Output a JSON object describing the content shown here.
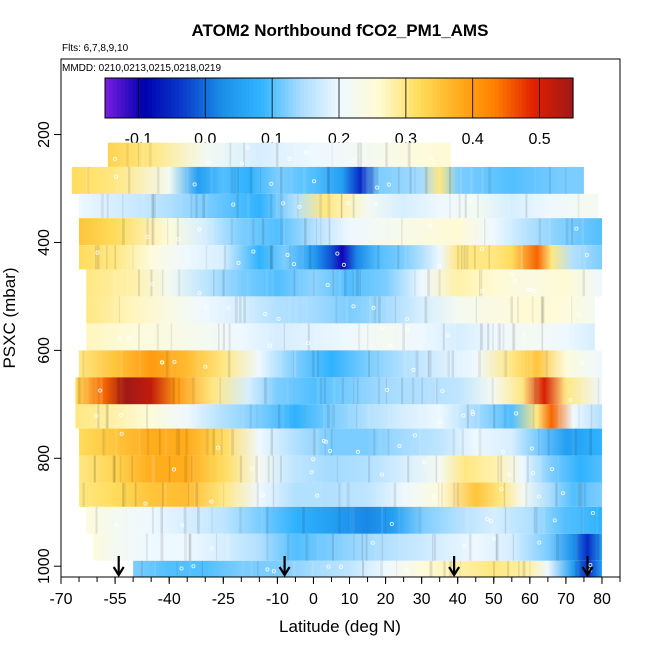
{
  "chart_data": {
    "type": "heatmap",
    "title": "ATOM2 Northbound fCO2_PM1_AMS",
    "flights_note": "Flts: 6,7,8,9,10",
    "dates_note": "MMDD: 0210,0213,0215,0218,0219",
    "xlabel": "Latitude (deg N)",
    "ylabel": "PSXC (mbar)",
    "xlim": [
      -70,
      85
    ],
    "ylim": [
      1020,
      60
    ],
    "x_ticks": [
      -70,
      -55,
      -40,
      -25,
      -10,
      0,
      10,
      20,
      30,
      40,
      50,
      60,
      70,
      80
    ],
    "x_tick_labels": [
      "-70",
      "-55",
      "-40",
      "-25",
      "-10",
      "0",
      "10",
      "20",
      "30",
      "40",
      "50",
      "60",
      "70",
      "80"
    ],
    "y_ticks": [
      200,
      400,
      600,
      800,
      1000
    ],
    "y_tick_labels": [
      "200",
      "400",
      "600",
      "800",
      "1000"
    ],
    "colorbar": {
      "min": -0.15,
      "max": 0.55,
      "ticks": [
        -0.1,
        0.0,
        0.1,
        0.2,
        0.3,
        0.4,
        0.5
      ],
      "tick_labels": [
        "-0.1",
        "0.0",
        "0.1",
        "0.2",
        "0.3",
        "0.4",
        "0.5"
      ],
      "colors": [
        "#7a1fe0",
        "#0000b0",
        "#0a3ccc",
        "#1a8fe8",
        "#31b4ff",
        "#a8dcff",
        "#eef8ff",
        "#fffbd6",
        "#ffdf60",
        "#ffb020",
        "#ff8000",
        "#e02000",
        "#a01818"
      ]
    },
    "profile_arrows_latitude": [
      -54,
      -8,
      39,
      76
    ],
    "value_units": "fraction",
    "bands": [
      {
        "p_top": 215,
        "p_bot": 260,
        "x_start": -57,
        "x_end": 38,
        "nodes": [
          [
            -57,
            0.33
          ],
          [
            -45,
            0.3
          ],
          [
            -30,
            0.22
          ],
          [
            -15,
            0.18
          ],
          [
            0,
            0.2
          ],
          [
            15,
            0.22
          ],
          [
            30,
            0.25
          ],
          [
            38,
            0.26
          ]
        ]
      },
      {
        "p_top": 260,
        "p_bot": 310,
        "x_start": -67,
        "x_end": 75,
        "nodes": [
          [
            -67,
            0.32
          ],
          [
            -55,
            0.3
          ],
          [
            -40,
            0.22
          ],
          [
            -32,
            0.05
          ],
          [
            -25,
            0.1
          ],
          [
            -18,
            0.08
          ],
          [
            -10,
            0.12
          ],
          [
            0,
            0.1
          ],
          [
            8,
            0.05
          ],
          [
            13,
            -0.05
          ],
          [
            18,
            0.12
          ],
          [
            30,
            0.14
          ],
          [
            35,
            0.3
          ],
          [
            40,
            0.12
          ],
          [
            55,
            0.1
          ],
          [
            70,
            0.12
          ],
          [
            75,
            0.12
          ]
        ]
      },
      {
        "p_top": 310,
        "p_bot": 355,
        "x_start": -65,
        "x_end": 79,
        "nodes": [
          [
            -65,
            0.2
          ],
          [
            -55,
            0.18
          ],
          [
            -40,
            0.15
          ],
          [
            -30,
            0.12
          ],
          [
            -15,
            0.08
          ],
          [
            -5,
            0.15
          ],
          [
            3,
            0.3
          ],
          [
            8,
            0.28
          ],
          [
            15,
            0.22
          ],
          [
            25,
            0.18
          ],
          [
            35,
            0.2
          ],
          [
            45,
            0.22
          ],
          [
            55,
            0.18
          ],
          [
            65,
            0.2
          ],
          [
            75,
            0.22
          ],
          [
            79,
            0.22
          ]
        ]
      },
      {
        "p_top": 355,
        "p_bot": 405,
        "x_start": -65,
        "x_end": 80,
        "nodes": [
          [
            -65,
            0.35
          ],
          [
            -55,
            0.32
          ],
          [
            -40,
            0.25
          ],
          [
            -30,
            0.18
          ],
          [
            -20,
            0.12
          ],
          [
            -10,
            0.1
          ],
          [
            0,
            0.15
          ],
          [
            10,
            0.2
          ],
          [
            20,
            0.22
          ],
          [
            30,
            0.24
          ],
          [
            40,
            0.26
          ],
          [
            50,
            0.2
          ],
          [
            60,
            0.15
          ],
          [
            70,
            0.12
          ],
          [
            80,
            0.1
          ]
        ]
      },
      {
        "p_top": 405,
        "p_bot": 450,
        "x_start": -65,
        "x_end": 80,
        "nodes": [
          [
            -65,
            0.32
          ],
          [
            -55,
            0.3
          ],
          [
            -45,
            0.25
          ],
          [
            -35,
            0.2
          ],
          [
            -25,
            0.18
          ],
          [
            -15,
            0.08
          ],
          [
            -8,
            0.12
          ],
          [
            0,
            0.05
          ],
          [
            5,
            -0.02
          ],
          [
            8,
            -0.1
          ],
          [
            12,
            0.02
          ],
          [
            18,
            0.1
          ],
          [
            25,
            0.12
          ],
          [
            30,
            0.15
          ],
          [
            35,
            0.2
          ],
          [
            40,
            0.3
          ],
          [
            50,
            0.3
          ],
          [
            55,
            0.32
          ],
          [
            62,
            0.45
          ],
          [
            66,
            0.3
          ],
          [
            72,
            0.15
          ],
          [
            80,
            0.12
          ]
        ]
      },
      {
        "p_top": 450,
        "p_bot": 500,
        "x_start": -63,
        "x_end": 80,
        "nodes": [
          [
            -63,
            0.3
          ],
          [
            -50,
            0.28
          ],
          [
            -40,
            0.22
          ],
          [
            -30,
            0.16
          ],
          [
            -20,
            0.12
          ],
          [
            -10,
            0.1
          ],
          [
            0,
            0.13
          ],
          [
            10,
            0.1
          ],
          [
            20,
            0.12
          ],
          [
            30,
            0.2
          ],
          [
            40,
            0.28
          ],
          [
            50,
            0.26
          ],
          [
            60,
            0.24
          ],
          [
            70,
            0.26
          ],
          [
            80,
            0.2
          ]
        ]
      },
      {
        "p_top": 500,
        "p_bot": 550,
        "x_start": -63,
        "x_end": 78,
        "nodes": [
          [
            -63,
            0.3
          ],
          [
            -50,
            0.27
          ],
          [
            -40,
            0.24
          ],
          [
            -30,
            0.2
          ],
          [
            -20,
            0.18
          ],
          [
            -10,
            0.15
          ],
          [
            0,
            0.14
          ],
          [
            10,
            0.12
          ],
          [
            20,
            0.14
          ],
          [
            30,
            0.18
          ],
          [
            40,
            0.22
          ],
          [
            50,
            0.24
          ],
          [
            60,
            0.26
          ],
          [
            70,
            0.25
          ],
          [
            78,
            0.22
          ]
        ]
      },
      {
        "p_top": 550,
        "p_bot": 600,
        "x_start": -63,
        "x_end": 78,
        "nodes": [
          [
            -63,
            0.27
          ],
          [
            -50,
            0.25
          ],
          [
            -40,
            0.24
          ],
          [
            -30,
            0.22
          ],
          [
            -20,
            0.2
          ],
          [
            -10,
            0.18
          ],
          [
            0,
            0.19
          ],
          [
            10,
            0.2
          ],
          [
            20,
            0.22
          ],
          [
            30,
            0.2
          ],
          [
            40,
            0.18
          ],
          [
            50,
            0.2
          ],
          [
            60,
            0.22
          ],
          [
            70,
            0.2
          ],
          [
            78,
            0.18
          ]
        ]
      },
      {
        "p_top": 600,
        "p_bot": 650,
        "x_start": -65,
        "x_end": 80,
        "nodes": [
          [
            -65,
            0.3
          ],
          [
            -55,
            0.35
          ],
          [
            -45,
            0.4
          ],
          [
            -35,
            0.36
          ],
          [
            -25,
            0.3
          ],
          [
            -15,
            0.2
          ],
          [
            -5,
            0.12
          ],
          [
            5,
            0.08
          ],
          [
            15,
            0.12
          ],
          [
            25,
            0.15
          ],
          [
            35,
            0.18
          ],
          [
            45,
            0.2
          ],
          [
            55,
            0.3
          ],
          [
            62,
            0.35
          ],
          [
            70,
            0.25
          ],
          [
            80,
            0.2
          ]
        ]
      },
      {
        "p_top": 650,
        "p_bot": 700,
        "x_start": -66,
        "x_end": 80,
        "nodes": [
          [
            -66,
            0.32
          ],
          [
            -58,
            0.45
          ],
          [
            -52,
            0.55
          ],
          [
            -45,
            0.52
          ],
          [
            -38,
            0.4
          ],
          [
            -28,
            0.3
          ],
          [
            -18,
            0.18
          ],
          [
            -10,
            0.12
          ],
          [
            0,
            0.1
          ],
          [
            10,
            0.12
          ],
          [
            20,
            0.14
          ],
          [
            30,
            0.15
          ],
          [
            40,
            0.16
          ],
          [
            50,
            0.22
          ],
          [
            58,
            0.3
          ],
          [
            64,
            0.5
          ],
          [
            70,
            0.3
          ],
          [
            80,
            0.2
          ]
        ]
      },
      {
        "p_top": 700,
        "p_bot": 745,
        "x_start": -66,
        "x_end": 80,
        "nodes": [
          [
            -66,
            0.3
          ],
          [
            -55,
            0.28
          ],
          [
            -45,
            0.25
          ],
          [
            -35,
            0.2
          ],
          [
            -25,
            0.15
          ],
          [
            -15,
            0.12
          ],
          [
            -5,
            0.08
          ],
          [
            5,
            0.12
          ],
          [
            15,
            0.15
          ],
          [
            25,
            0.18
          ],
          [
            35,
            0.2
          ],
          [
            45,
            0.14
          ],
          [
            55,
            0.1
          ],
          [
            62,
            0.3
          ],
          [
            66,
            0.45
          ],
          [
            72,
            0.2
          ],
          [
            80,
            0.15
          ]
        ]
      },
      {
        "p_top": 745,
        "p_bot": 795,
        "x_start": -65,
        "x_end": 80,
        "nodes": [
          [
            -65,
            0.32
          ],
          [
            -55,
            0.35
          ],
          [
            -45,
            0.38
          ],
          [
            -35,
            0.38
          ],
          [
            -25,
            0.32
          ],
          [
            -15,
            0.2
          ],
          [
            -5,
            0.15
          ],
          [
            5,
            0.12
          ],
          [
            15,
            0.12
          ],
          [
            25,
            0.14
          ],
          [
            35,
            0.16
          ],
          [
            45,
            0.2
          ],
          [
            55,
            0.18
          ],
          [
            62,
            0.12
          ],
          [
            70,
            0.05
          ],
          [
            80,
            0.08
          ]
        ]
      },
      {
        "p_top": 795,
        "p_bot": 845,
        "x_start": -65,
        "x_end": 80,
        "nodes": [
          [
            -65,
            0.3
          ],
          [
            -55,
            0.33
          ],
          [
            -45,
            0.38
          ],
          [
            -35,
            0.38
          ],
          [
            -25,
            0.32
          ],
          [
            -15,
            0.22
          ],
          [
            -5,
            0.16
          ],
          [
            5,
            0.14
          ],
          [
            15,
            0.15
          ],
          [
            25,
            0.18
          ],
          [
            35,
            0.22
          ],
          [
            42,
            0.3
          ],
          [
            50,
            0.28
          ],
          [
            58,
            0.2
          ],
          [
            66,
            0.12
          ],
          [
            74,
            0.08
          ],
          [
            80,
            0.1
          ]
        ]
      },
      {
        "p_top": 845,
        "p_bot": 890,
        "x_start": -65,
        "x_end": 80,
        "nodes": [
          [
            -65,
            0.3
          ],
          [
            -55,
            0.32
          ],
          [
            -45,
            0.35
          ],
          [
            -35,
            0.36
          ],
          [
            -25,
            0.3
          ],
          [
            -15,
            0.2
          ],
          [
            -5,
            0.15
          ],
          [
            5,
            0.15
          ],
          [
            15,
            0.16
          ],
          [
            25,
            0.2
          ],
          [
            35,
            0.25
          ],
          [
            45,
            0.35
          ],
          [
            52,
            0.3
          ],
          [
            58,
            0.22
          ],
          [
            65,
            0.15
          ],
          [
            72,
            0.1
          ],
          [
            80,
            0.12
          ]
        ]
      },
      {
        "p_top": 890,
        "p_bot": 940,
        "x_start": -63,
        "x_end": 80,
        "nodes": [
          [
            -63,
            0.25
          ],
          [
            -55,
            0.22
          ],
          [
            -45,
            0.2
          ],
          [
            -35,
            0.18
          ],
          [
            -25,
            0.16
          ],
          [
            -15,
            0.12
          ],
          [
            -5,
            0.08
          ],
          [
            5,
            0.05
          ],
          [
            15,
            0.02
          ],
          [
            22,
            0.05
          ],
          [
            30,
            0.12
          ],
          [
            40,
            0.15
          ],
          [
            50,
            0.18
          ],
          [
            60,
            0.15
          ],
          [
            70,
            0.1
          ],
          [
            80,
            0.08
          ]
        ]
      },
      {
        "p_top": 940,
        "p_bot": 990,
        "x_start": -61,
        "x_end": 80,
        "nodes": [
          [
            -61,
            0.25
          ],
          [
            -55,
            0.22
          ],
          [
            -45,
            0.2
          ],
          [
            -35,
            0.2
          ],
          [
            -25,
            0.18
          ],
          [
            -15,
            0.15
          ],
          [
            -5,
            0.1
          ],
          [
            5,
            0.12
          ],
          [
            15,
            0.14
          ],
          [
            25,
            0.16
          ],
          [
            35,
            0.18
          ],
          [
            45,
            0.2
          ],
          [
            55,
            0.18
          ],
          [
            65,
            0.12
          ],
          [
            72,
            0.03
          ],
          [
            76,
            -0.05
          ],
          [
            80,
            0.05
          ]
        ]
      },
      {
        "p_top": 990,
        "p_bot": 1020,
        "x_start": -50,
        "x_end": 80,
        "nodes": [
          [
            -50,
            0.12
          ],
          [
            -40,
            0.1
          ],
          [
            -30,
            0.1
          ],
          [
            -20,
            0.12
          ],
          [
            -10,
            0.12
          ],
          [
            0,
            0.14
          ],
          [
            10,
            0.16
          ],
          [
            20,
            0.2
          ],
          [
            30,
            0.25
          ],
          [
            40,
            0.28
          ],
          [
            50,
            0.3
          ],
          [
            60,
            0.28
          ],
          [
            65,
            0.2
          ],
          [
            72,
            0.05
          ],
          [
            76,
            -0.05
          ],
          [
            80,
            0.05
          ]
        ]
      }
    ]
  }
}
